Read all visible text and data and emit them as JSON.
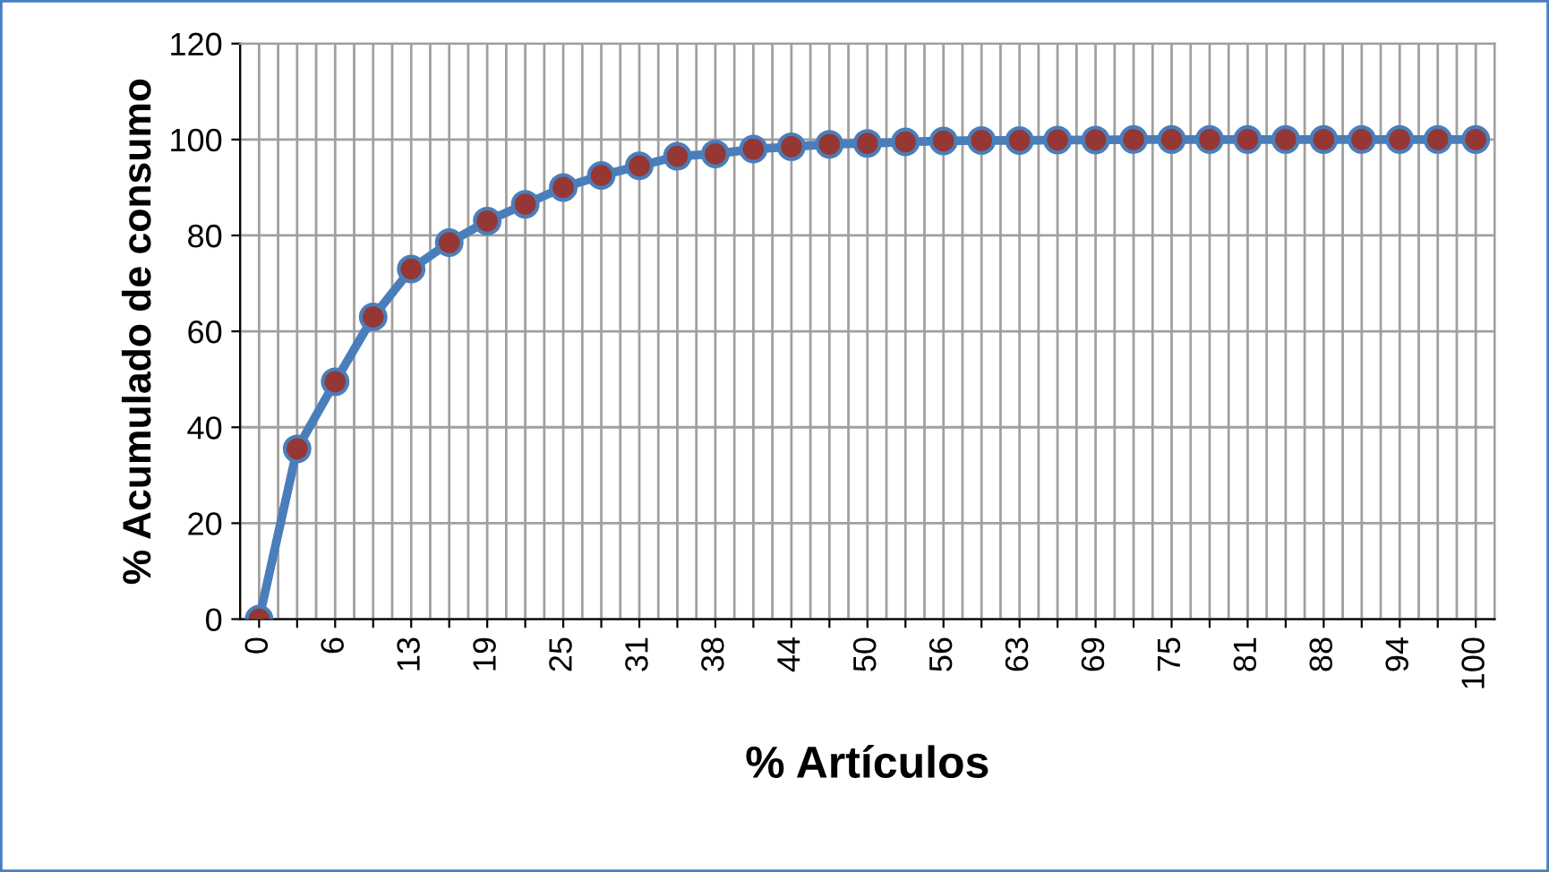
{
  "chart_data": {
    "type": "line",
    "xlabel": "% Artículos",
    "ylabel": "% Acumulado de consumo",
    "categories": [
      "0",
      null,
      "6",
      null,
      "13",
      null,
      "19",
      null,
      "25",
      null,
      "31",
      null,
      "38",
      null,
      "44",
      null,
      "50",
      null,
      "56",
      null,
      "63",
      null,
      "69",
      null,
      "75",
      null,
      "81",
      null,
      "88",
      null,
      "94",
      null,
      "100"
    ],
    "series": [
      {
        "color": "#4a7ebb",
        "colors": [
          "#953735",
          "#953735",
          "#953735",
          "#953735",
          "#953735",
          "#953735",
          "#953735",
          "#953735",
          "#953735",
          "#953735",
          "#953735",
          "#953735",
          "#953735",
          "#953735",
          "#953735",
          "#953735",
          "#953735",
          "#953735",
          "#953735",
          "#953735",
          "#953735",
          "#953735",
          "#953735",
          "#953735",
          "#953735",
          "#953735",
          "#953735",
          "#953735",
          "#953735",
          "#953735",
          "#953735",
          "#953735",
          "#953735"
        ],
        "values": [
          0,
          35.5,
          49.5,
          63,
          73,
          78.5,
          83,
          86.5,
          90,
          92.5,
          94.5,
          96.5,
          97,
          98,
          98.5,
          99,
          99.2,
          99.5,
          99.7,
          99.8,
          99.8,
          99.9,
          99.9,
          100,
          100,
          100,
          100,
          100,
          100,
          100,
          100,
          100,
          100
        ]
      }
    ],
    "ylim": [
      0,
      120
    ],
    "yticks": [
      0,
      20,
      40,
      60,
      80,
      100,
      120
    ],
    "grid": true,
    "marker": "circle",
    "line_style": "solid"
  }
}
